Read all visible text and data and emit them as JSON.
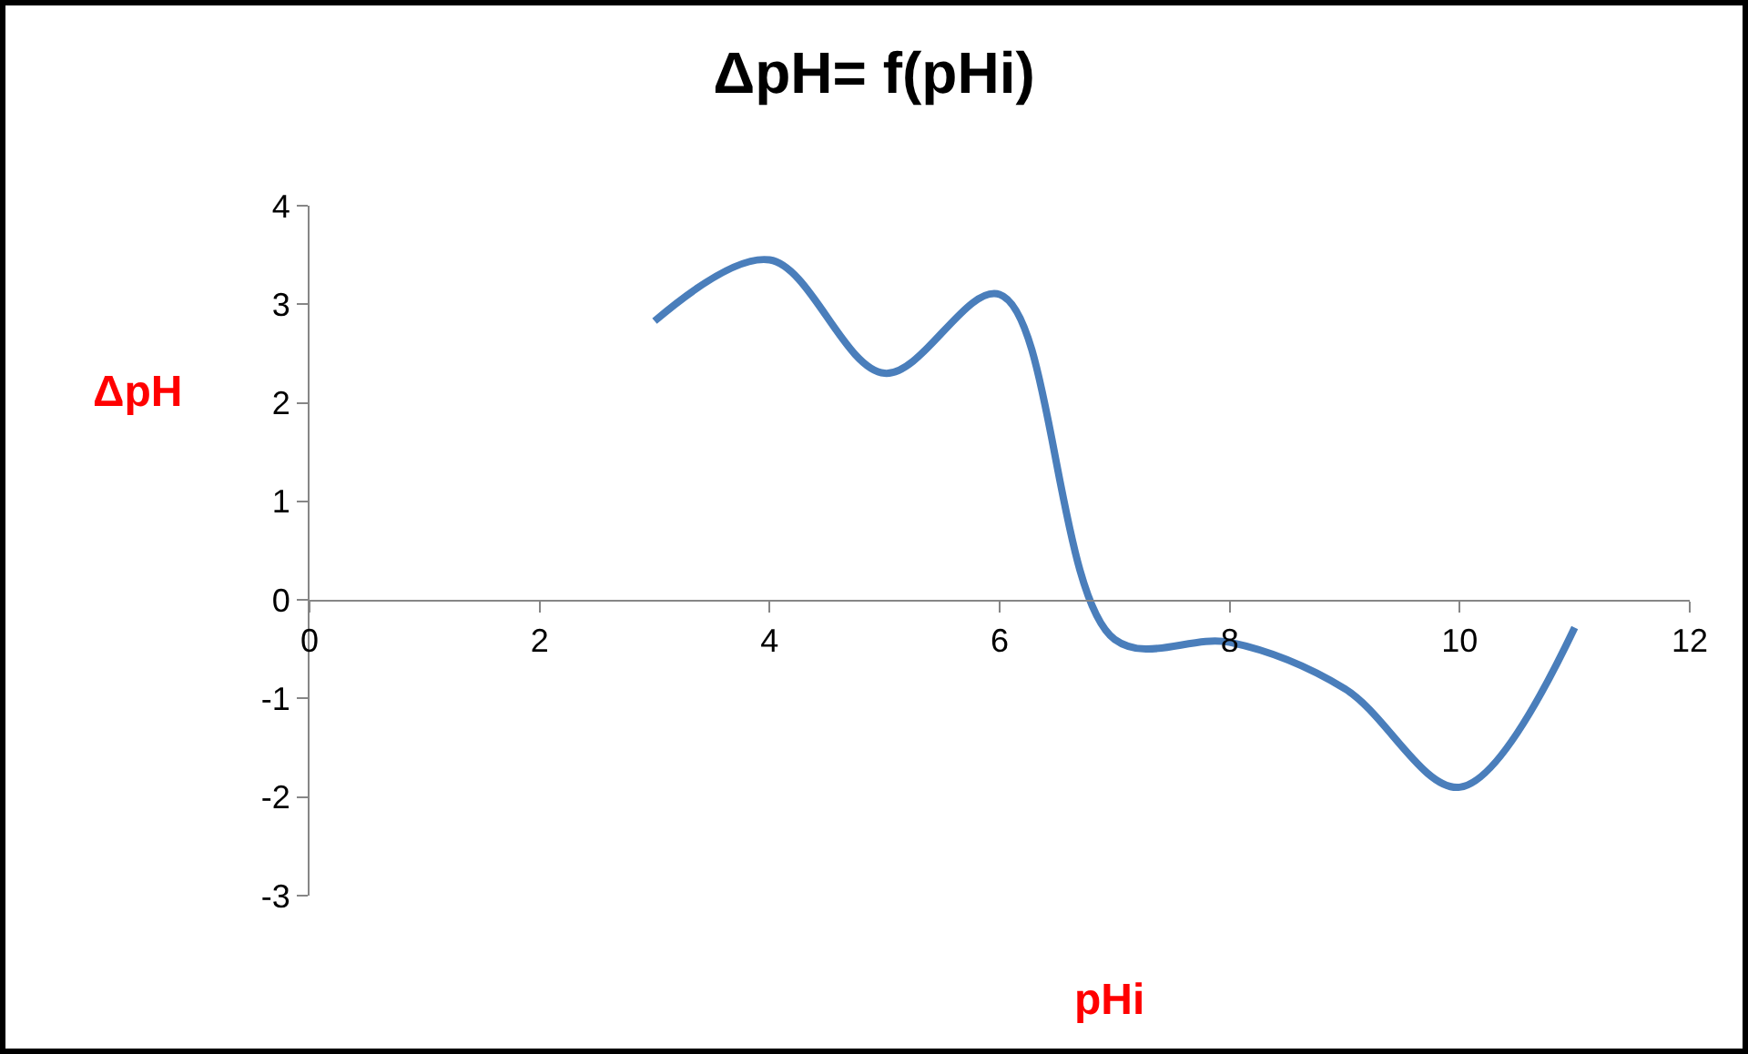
{
  "chart_data": {
    "type": "line",
    "title": "ΔpH= f(pHi)",
    "xlabel": "pHi",
    "ylabel": "ΔpH",
    "x": [
      3,
      4,
      5,
      6,
      7,
      8,
      9,
      10,
      11
    ],
    "series": [
      {
        "color": "#4a7ebb",
        "values": [
          2.83,
          3.45,
          2.3,
          3.1,
          -0.4,
          -0.43,
          -0.9,
          -1.9,
          -0.28
        ]
      }
    ],
    "xlim": [
      0,
      12
    ],
    "xticks": [
      0,
      2,
      4,
      6,
      8,
      10,
      12
    ],
    "ylim": [
      -3,
      4
    ],
    "yticks": [
      -3,
      -2,
      -1,
      0,
      1,
      2,
      3,
      4
    ],
    "marker": "none",
    "line_style": "solid"
  }
}
